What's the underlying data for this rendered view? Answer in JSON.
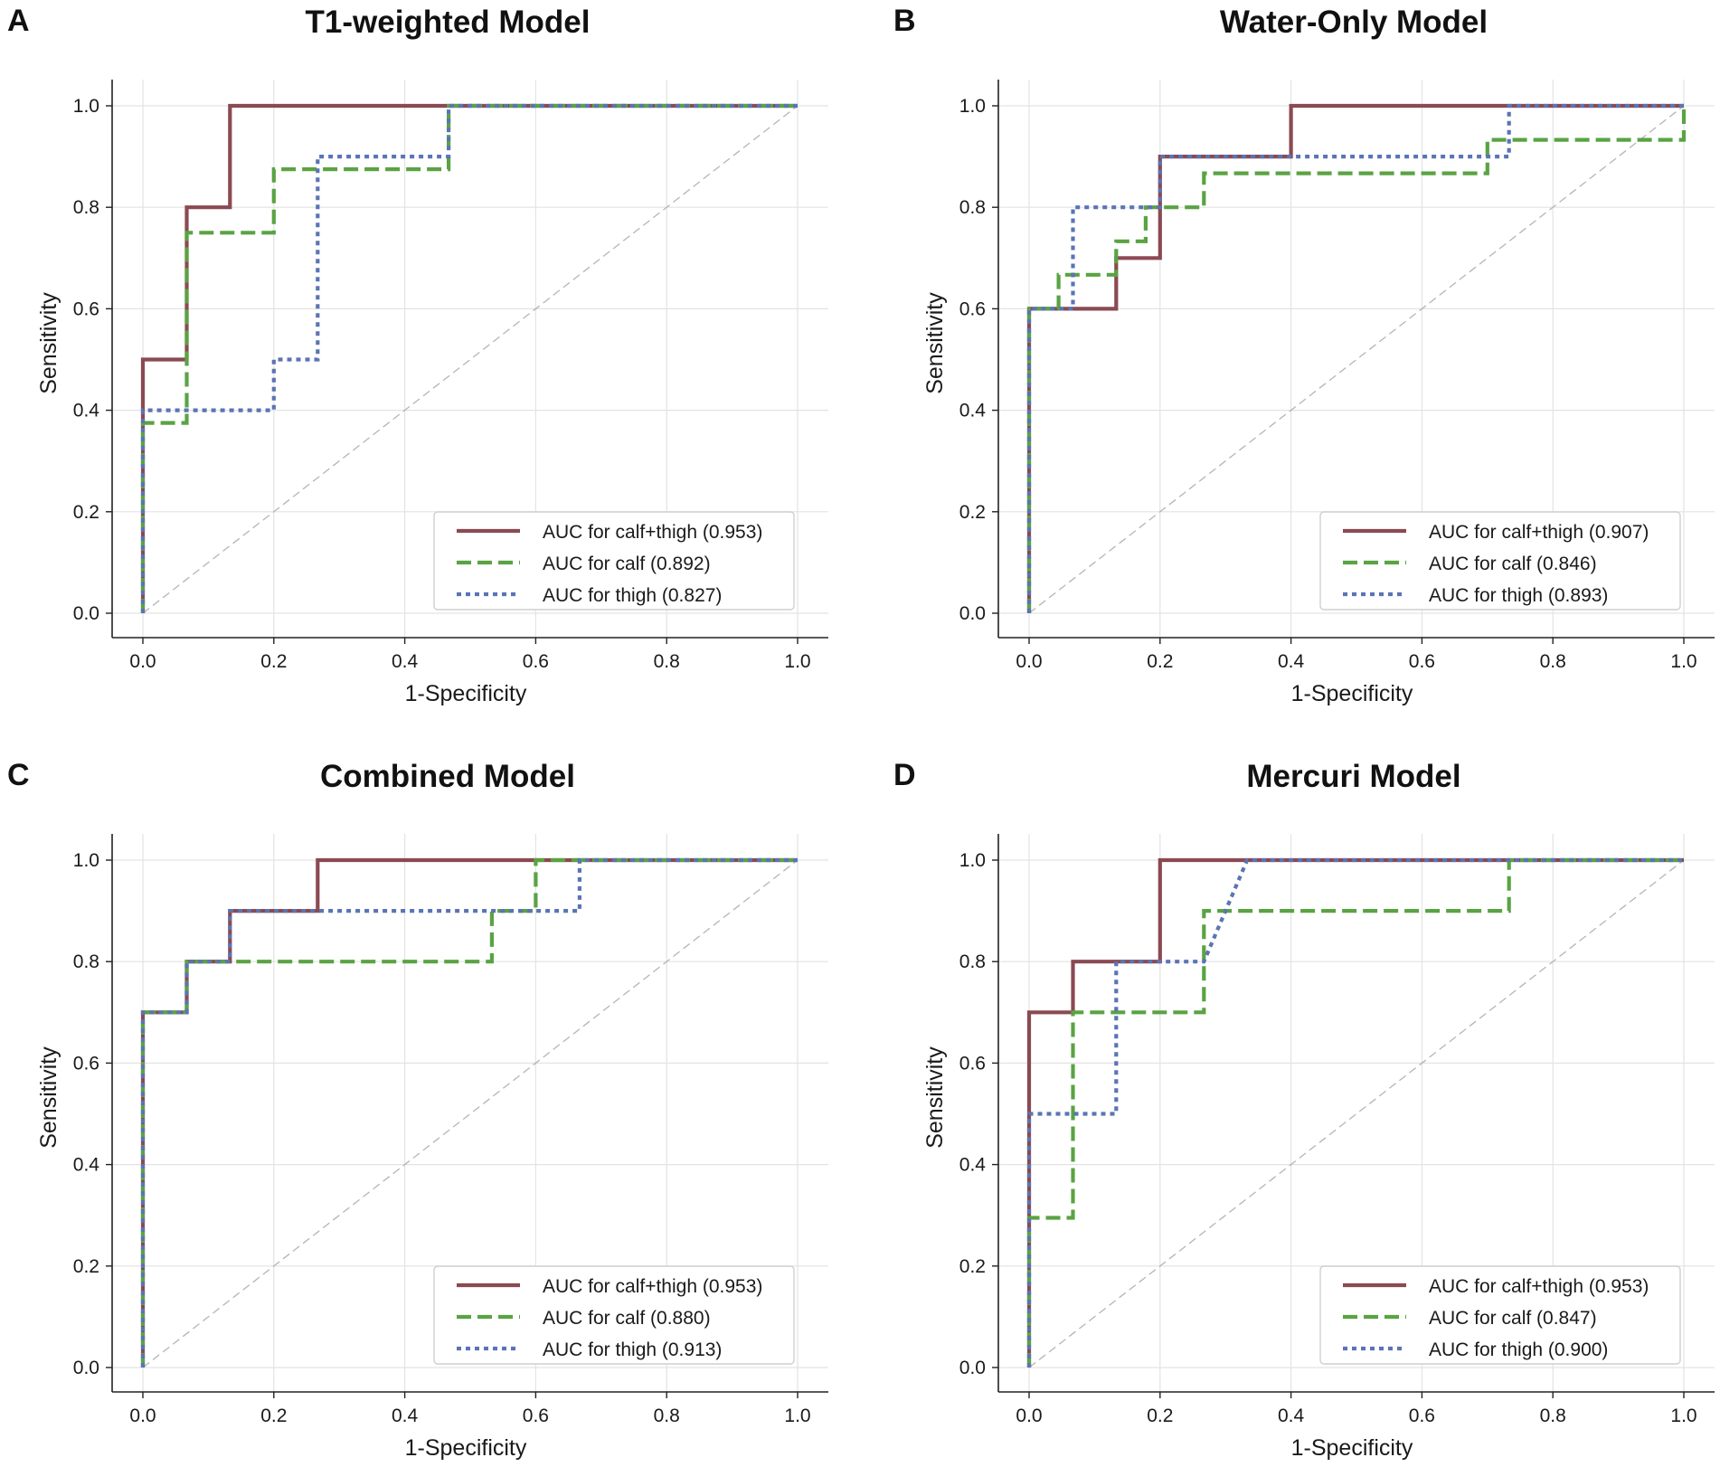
{
  "chart_data": [
    {
      "type": "line",
      "letter": "A",
      "title": "T1-weighted Model",
      "xlabel": "1-Specificity",
      "ylabel": "Sensitivity",
      "xlim": [
        0,
        1
      ],
      "ylim": [
        0,
        1
      ],
      "xticks": [
        "0.0",
        "0.2",
        "0.4",
        "0.6",
        "0.8",
        "1.0"
      ],
      "yticks": [
        "0.0",
        "0.2",
        "0.4",
        "0.6",
        "0.8",
        "1.0"
      ],
      "grid": true,
      "legend_position": "bottom-right",
      "reference_line": "diagonal",
      "series": [
        {
          "name": "AUC for calf+thigh (0.953)",
          "color": "#8b4a52",
          "style": "solid",
          "x": [
            0,
            0,
            0,
            0.067,
            0.067,
            0.133,
            0.133,
            1
          ],
          "y": [
            0,
            0.4,
            0.5,
            0.5,
            0.8,
            0.8,
            1.0,
            1.0
          ]
        },
        {
          "name": "AUC for calf (0.892)",
          "color": "#5aa343",
          "style": "dashed",
          "x": [
            0,
            0,
            0.067,
            0.067,
            0.2,
            0.2,
            0.467,
            0.467,
            1
          ],
          "y": [
            0,
            0.375,
            0.375,
            0.75,
            0.75,
            0.875,
            0.875,
            1.0,
            1.0
          ]
        },
        {
          "name": "AUC for thigh (0.827)",
          "color": "#5b74b3",
          "style": "dotted",
          "x": [
            0,
            0,
            0.2,
            0.2,
            0.267,
            0.267,
            0.467,
            0.467,
            1
          ],
          "y": [
            0,
            0.4,
            0.4,
            0.5,
            0.5,
            0.9,
            0.9,
            1.0,
            1.0
          ]
        }
      ]
    },
    {
      "type": "line",
      "letter": "B",
      "title": "Water-Only Model",
      "xlabel": "1-Specificity",
      "ylabel": "Sensitivity",
      "xlim": [
        0,
        1
      ],
      "ylim": [
        0,
        1
      ],
      "xticks": [
        "0.0",
        "0.2",
        "0.4",
        "0.6",
        "0.8",
        "1.0"
      ],
      "yticks": [
        "0.0",
        "0.2",
        "0.4",
        "0.6",
        "0.8",
        "1.0"
      ],
      "grid": true,
      "legend_position": "bottom-right",
      "reference_line": "diagonal",
      "series": [
        {
          "name": "AUC for calf+thigh (0.907)",
          "color": "#8b4a52",
          "style": "solid",
          "x": [
            0,
            0,
            0.133,
            0.133,
            0.2,
            0.2,
            0.4,
            0.4,
            1
          ],
          "y": [
            0,
            0.6,
            0.6,
            0.7,
            0.7,
            0.9,
            0.9,
            1.0,
            1.0
          ]
        },
        {
          "name": "AUC for calf (0.846)",
          "color": "#5aa343",
          "style": "dashed",
          "x": [
            0,
            0,
            0.045,
            0.045,
            0.133,
            0.133,
            0.178,
            0.178,
            0.267,
            0.267,
            0.7,
            0.7,
            1,
            1
          ],
          "y": [
            0,
            0.6,
            0.6,
            0.667,
            0.667,
            0.733,
            0.733,
            0.8,
            0.8,
            0.867,
            0.867,
            0.933,
            0.933,
            1.0
          ]
        },
        {
          "name": "AUC for thigh (0.893)",
          "color": "#5b74b3",
          "style": "dotted",
          "x": [
            0,
            0,
            0.067,
            0.067,
            0.2,
            0.2,
            0.733,
            0.733,
            1
          ],
          "y": [
            0,
            0.6,
            0.6,
            0.8,
            0.8,
            0.9,
            0.9,
            1.0,
            1.0
          ]
        }
      ]
    },
    {
      "type": "line",
      "letter": "C",
      "title": "Combined Model",
      "xlabel": "1-Specificity",
      "ylabel": "Sensitivity",
      "xlim": [
        0,
        1
      ],
      "ylim": [
        0,
        1
      ],
      "xticks": [
        "0.0",
        "0.2",
        "0.4",
        "0.6",
        "0.8",
        "1.0"
      ],
      "yticks": [
        "0.0",
        "0.2",
        "0.4",
        "0.6",
        "0.8",
        "1.0"
      ],
      "grid": true,
      "legend_position": "bottom-right",
      "reference_line": "diagonal",
      "series": [
        {
          "name": "AUC for calf+thigh (0.953)",
          "color": "#8b4a52",
          "style": "solid",
          "x": [
            0,
            0,
            0.067,
            0.067,
            0.133,
            0.133,
            0.267,
            0.267,
            1
          ],
          "y": [
            0,
            0.7,
            0.7,
            0.8,
            0.8,
            0.9,
            0.9,
            1.0,
            1.0
          ]
        },
        {
          "name": "AUC for calf (0.880)",
          "color": "#5aa343",
          "style": "dashed",
          "x": [
            0,
            0,
            0.067,
            0.067,
            0.533,
            0.533,
            0.6,
            0.6,
            1
          ],
          "y": [
            0,
            0.7,
            0.7,
            0.8,
            0.8,
            0.9,
            0.9,
            1.0,
            1.0
          ]
        },
        {
          "name": "AUC for thigh (0.913)",
          "color": "#5b74b3",
          "style": "dotted",
          "x": [
            0,
            0,
            0.067,
            0.067,
            0.133,
            0.133,
            0.667,
            0.667,
            1
          ],
          "y": [
            0,
            0.7,
            0.7,
            0.8,
            0.8,
            0.9,
            0.9,
            1.0,
            1.0
          ]
        }
      ]
    },
    {
      "type": "line",
      "letter": "D",
      "title": "Mercuri Model",
      "xlabel": "1-Specificity",
      "ylabel": "Sensitivity",
      "xlim": [
        0,
        1
      ],
      "ylim": [
        0,
        1
      ],
      "xticks": [
        "0.0",
        "0.2",
        "0.4",
        "0.6",
        "0.8",
        "1.0"
      ],
      "yticks": [
        "0.0",
        "0.2",
        "0.4",
        "0.6",
        "0.8",
        "1.0"
      ],
      "grid": true,
      "legend_position": "bottom-right",
      "reference_line": "diagonal",
      "series": [
        {
          "name": "AUC for calf+thigh (0.953)",
          "color": "#8b4a52",
          "style": "solid",
          "x": [
            0,
            0,
            0.067,
            0.067,
            0.2,
            0.2,
            1
          ],
          "y": [
            0,
            0.7,
            0.7,
            0.8,
            0.8,
            1.0,
            1.0
          ]
        },
        {
          "name": "AUC for calf (0.847)",
          "color": "#5aa343",
          "style": "dashed",
          "x": [
            0,
            0,
            0.067,
            0.067,
            0.267,
            0.267,
            0.733,
            0.733,
            1
          ],
          "y": [
            0,
            0.295,
            0.295,
            0.7,
            0.7,
            0.9,
            0.9,
            1.0,
            1.0
          ]
        },
        {
          "name": "AUC for thigh (0.900)",
          "color": "#5b74b3",
          "style": "dotted",
          "x": [
            0,
            0,
            0.133,
            0.133,
            0.267,
            0.333,
            1
          ],
          "y": [
            0,
            0.5,
            0.5,
            0.8,
            0.8,
            1.0,
            1.0
          ]
        }
      ]
    }
  ]
}
